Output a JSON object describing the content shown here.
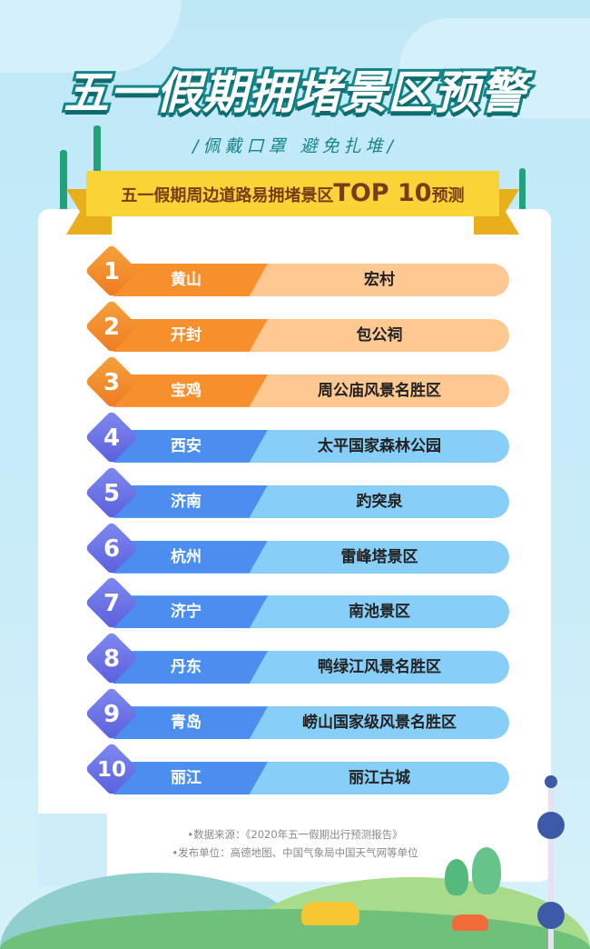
{
  "title": "五一假期拥堵景区预警",
  "subtitle": "/佩戴口罩  避免扎堆/",
  "ribbon": {
    "prefix": "五一假期周边道路易拥堵景区",
    "highlight": "TOP 10",
    "suffix": "预测"
  },
  "colors": {
    "orange_dark": "#f7902c",
    "orange_light": "#fdc891",
    "blue_dark": "#4b8ef0",
    "blue_light": "#87cff8",
    "title_stroke": "#12868a",
    "ribbon": "#f9d437"
  },
  "ranking": [
    {
      "rank": "1",
      "city": "黄山",
      "spot": "宏村",
      "tier": "orange"
    },
    {
      "rank": "2",
      "city": "开封",
      "spot": "包公祠",
      "tier": "orange"
    },
    {
      "rank": "3",
      "city": "宝鸡",
      "spot": "周公庙风景名胜区",
      "tier": "orange"
    },
    {
      "rank": "4",
      "city": "西安",
      "spot": "太平国家森林公园",
      "tier": "blue"
    },
    {
      "rank": "5",
      "city": "济南",
      "spot": "趵突泉",
      "tier": "blue"
    },
    {
      "rank": "6",
      "city": "杭州",
      "spot": "雷峰塔景区",
      "tier": "blue"
    },
    {
      "rank": "7",
      "city": "济宁",
      "spot": "南池景区",
      "tier": "blue"
    },
    {
      "rank": "8",
      "city": "丹东",
      "spot": "鸭绿江风景名胜区",
      "tier": "blue"
    },
    {
      "rank": "9",
      "city": "青岛",
      "spot": "崂山国家级风景名胜区",
      "tier": "blue"
    },
    {
      "rank": "10",
      "city": "丽江",
      "spot": "丽江古城",
      "tier": "blue"
    }
  ],
  "footer": {
    "source": "•数据来源：《2020年五一假期出行预测报告》",
    "publisher": "•发布单位：高德地图、中国气象局中国天气网等单位"
  }
}
